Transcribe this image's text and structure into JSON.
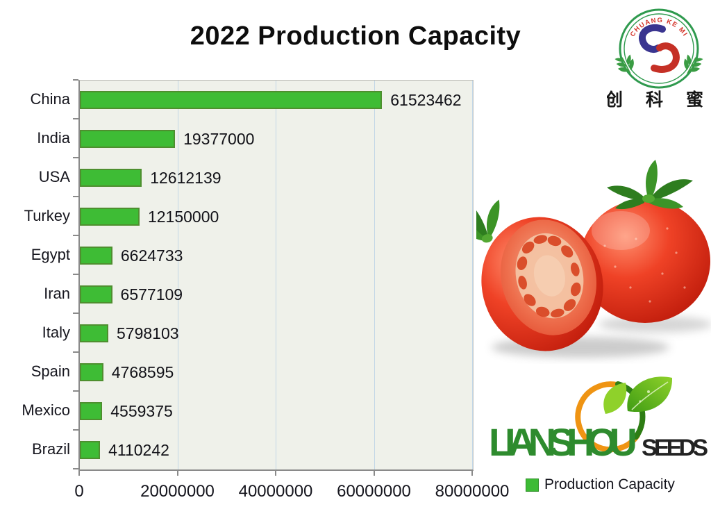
{
  "title": "2022 Production Capacity",
  "header_logo": {
    "arc_text": "CHUANG KE MI",
    "cn_text": "创 科 蜜"
  },
  "chart_data": {
    "type": "bar",
    "orientation": "horizontal",
    "title": "2022 Production Capacity",
    "categories": [
      "China",
      "India",
      "USA",
      "Turkey",
      "Egypt",
      "Iran",
      "Italy",
      "Spain",
      "Mexico",
      "Brazil"
    ],
    "values": [
      61523462,
      19377000,
      12612139,
      12150000,
      6624733,
      6577109,
      5798103,
      4768595,
      4559375,
      4110242
    ],
    "series_name": "Production Capacity",
    "xlim": [
      0,
      80000000
    ],
    "xticks": [
      0,
      20000000,
      40000000,
      60000000,
      80000000
    ],
    "grid": true,
    "legend_position": "bottom-right",
    "bar_color": "#3ebc35",
    "bar_border_color": "#4e8f2f",
    "plot_bg": "#eff1ea",
    "gridline_color": "#c2d6e6"
  },
  "legend": {
    "label": "Production Capacity",
    "swatch_color": "#3dbb35"
  },
  "brand": {
    "name": "LIANSHOU",
    "suffix": "SEEDS"
  }
}
